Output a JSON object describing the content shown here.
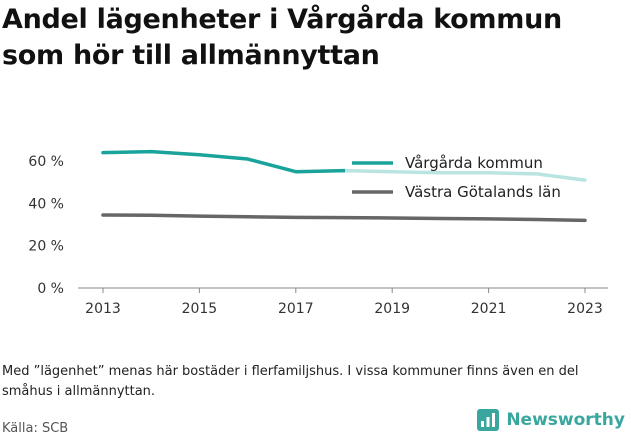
{
  "title": "Andel lägenheter i Vårgårda kommun som hör till allmännyttan",
  "note": "Med ”lägenhet” menas här bostäder i flerfamiljshus. I vissa kommuner finns även en del småhus i allmännyttan.",
  "source": "Källa: SCB",
  "brand": {
    "name": "Newsworthy",
    "icon": "bar-chart-logo-icon"
  },
  "colors": {
    "vargarda": "#1aa39a",
    "vargarda_faded": "#a6e3dd",
    "lan": "#666666"
  },
  "chart_data": {
    "type": "line",
    "x": [
      2013,
      2014,
      2015,
      2016,
      2017,
      2018,
      2019,
      2020,
      2021,
      2022,
      2023
    ],
    "series": [
      {
        "name": "Vårgårda kommun",
        "color": "#1aa39a",
        "values": [
          64,
          64.5,
          63,
          61,
          55,
          55.5,
          55,
          54.5,
          54.5,
          54,
          51
        ]
      },
      {
        "name": "Västra Götalands län",
        "color": "#666666",
        "values": [
          34.5,
          34.4,
          34,
          33.7,
          33.4,
          33.3,
          33.1,
          32.9,
          32.7,
          32.4,
          32
        ]
      }
    ],
    "xticks": [
      "2013",
      "2015",
      "2017",
      "2019",
      "2021",
      "2023"
    ],
    "yticks": [
      "0 %",
      "20 %",
      "40 %",
      "60 %"
    ],
    "ylim": [
      0,
      70
    ],
    "legend_position": "top-right",
    "grid": false
  }
}
